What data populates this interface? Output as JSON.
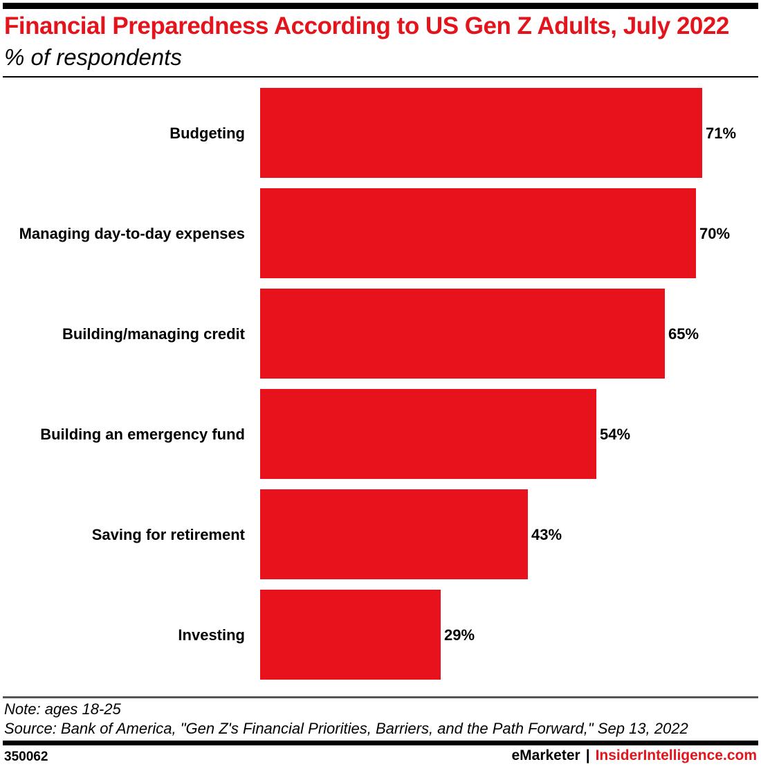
{
  "header": {
    "title": "Financial Preparedness According to US Gen Z Adults, July 2022",
    "subtitle": "% of respondents"
  },
  "footer": {
    "note": "Note: ages 18-25",
    "source": "Source: Bank of America, \"Gen Z's Financial Priorities, Barriers, and the Path Forward,\" Sep 13, 2022",
    "chart_id": "350062",
    "brand_emarketer": "eMarketer",
    "brand_separator": "|",
    "brand_insider": "InsiderIntelligence.com"
  },
  "colors": {
    "bar": "#e8121c",
    "title": "#e3141c",
    "brand_accent": "#e3141c"
  },
  "chart_data": {
    "type": "bar",
    "orientation": "horizontal",
    "title": "Financial Preparedness According to US Gen Z Adults, July 2022",
    "subtitle": "% of respondents",
    "categories": [
      "Budgeting",
      "Managing day-to-day expenses",
      "Building/managing credit",
      "Building an emergency fund",
      "Saving for retirement",
      "Investing"
    ],
    "values": [
      71,
      70,
      65,
      54,
      43,
      29
    ],
    "value_labels": [
      "71%",
      "70%",
      "65%",
      "54%",
      "43%",
      "29%"
    ],
    "unit": "%",
    "xlim": [
      0,
      100
    ],
    "grid": false,
    "legend": "none"
  }
}
